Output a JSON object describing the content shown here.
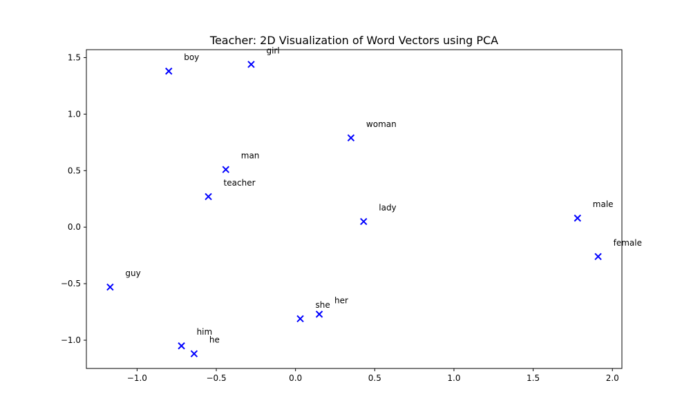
{
  "chart_data": {
    "type": "scatter",
    "title": "Teacher: 2D Visualization of Word Vectors using PCA",
    "xlabel": "",
    "ylabel": "",
    "xlim": [
      -1.32,
      2.06
    ],
    "ylim": [
      -1.25,
      1.57
    ],
    "grid": false,
    "marker": "x",
    "marker_color": "#0000ff",
    "x_ticks": [
      -1.0,
      -0.5,
      0.0,
      0.5,
      1.0,
      1.5,
      2.0
    ],
    "x_tick_labels": [
      "−1.0",
      "−0.5",
      "0.0",
      "0.5",
      "1.0",
      "1.5",
      "2.0"
    ],
    "y_ticks": [
      -1.0,
      -0.5,
      0.0,
      0.5,
      1.0,
      1.5
    ],
    "y_tick_labels": [
      "−1.0",
      "−0.5",
      "0.0",
      "0.5",
      "1.0",
      "1.5"
    ],
    "points": [
      {
        "label": "boy",
        "x": -0.8,
        "y": 1.38
      },
      {
        "label": "girl",
        "x": -0.28,
        "y": 1.44
      },
      {
        "label": "woman",
        "x": 0.35,
        "y": 0.79
      },
      {
        "label": "man",
        "x": -0.44,
        "y": 0.51
      },
      {
        "label": "teacher",
        "x": -0.55,
        "y": 0.27
      },
      {
        "label": "lady",
        "x": 0.43,
        "y": 0.05
      },
      {
        "label": "male",
        "x": 1.78,
        "y": 0.08
      },
      {
        "label": "female",
        "x": 1.91,
        "y": -0.26
      },
      {
        "label": "guy",
        "x": -1.17,
        "y": -0.53
      },
      {
        "label": "her",
        "x": 0.15,
        "y": -0.77
      },
      {
        "label": "she",
        "x": 0.03,
        "y": -0.81
      },
      {
        "label": "him",
        "x": -0.72,
        "y": -1.05
      },
      {
        "label": "he",
        "x": -0.64,
        "y": -1.12
      }
    ]
  }
}
